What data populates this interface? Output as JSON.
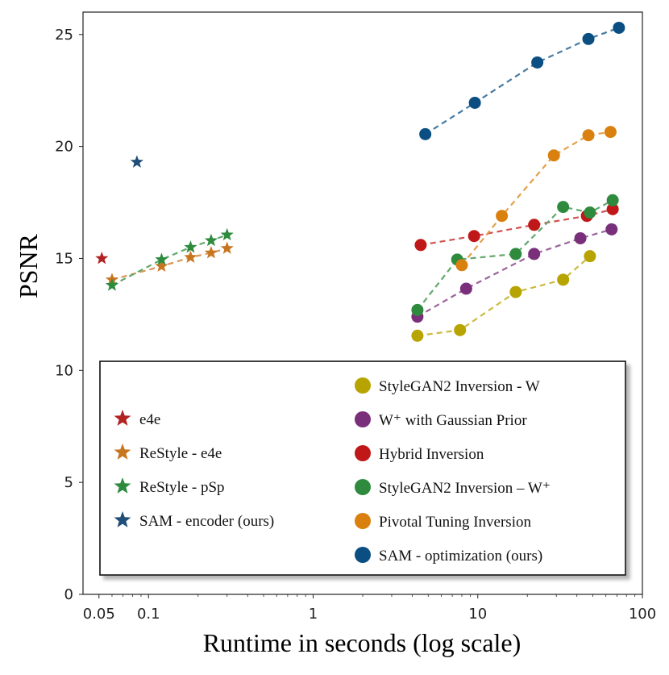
{
  "chart_data": {
    "type": "scatter",
    "title": "",
    "xlabel": "Runtime in seconds (log scale)",
    "ylabel": "PSNR",
    "xscale": "log",
    "xlim": [
      0.04,
      100
    ],
    "ylim": [
      0,
      26
    ],
    "xticks": [
      {
        "value": 0.05,
        "label": "0.05"
      },
      {
        "value": 0.1,
        "label": "0.1"
      },
      {
        "value": 1,
        "label": "1"
      },
      {
        "value": 10,
        "label": "10"
      },
      {
        "value": 100,
        "label": "100"
      }
    ],
    "yticks": [
      {
        "value": 0,
        "label": "0"
      },
      {
        "value": 5,
        "label": "5"
      },
      {
        "value": 10,
        "label": "10"
      },
      {
        "value": 15,
        "label": "15"
      },
      {
        "value": 20,
        "label": "20"
      },
      {
        "value": 25,
        "label": "25"
      }
    ],
    "grid": false,
    "legend_position": "bottom (inside plot)",
    "series": [
      {
        "name": "e4e",
        "marker": "star",
        "color": "#b22222",
        "line": false,
        "legend_column": 0,
        "x": [
          0.052
        ],
        "y": [
          15.0
        ]
      },
      {
        "name": "ReStyle - e4e",
        "marker": "star",
        "color": "#c87520",
        "line": true,
        "legend_column": 0,
        "x": [
          0.06,
          0.12,
          0.18,
          0.24,
          0.3
        ],
        "y": [
          14.05,
          14.65,
          15.05,
          15.25,
          15.45
        ]
      },
      {
        "name": "ReStyle - pSp",
        "marker": "star",
        "color": "#2e8b3e",
        "line": true,
        "legend_column": 0,
        "x": [
          0.06,
          0.12,
          0.18,
          0.24,
          0.3
        ],
        "y": [
          13.8,
          14.95,
          15.5,
          15.8,
          16.05
        ]
      },
      {
        "name": "SAM - encoder (ours)",
        "marker": "star",
        "color": "#1f4e79",
        "line": false,
        "legend_column": 0,
        "x": [
          0.085
        ],
        "y": [
          19.3
        ]
      },
      {
        "name": "StyleGAN2 Inversion - W",
        "marker": "circle",
        "color": "#b8a400",
        "line": true,
        "legend_column": 1,
        "x": [
          4.3,
          7.8,
          17,
          33,
          48
        ],
        "y": [
          11.55,
          11.8,
          13.5,
          14.05,
          15.1
        ]
      },
      {
        "name": "W⁺ with Gaussian Prior",
        "marker": "circle",
        "color": "#7a2f7a",
        "line": true,
        "legend_column": 1,
        "x": [
          4.3,
          8.5,
          22,
          42,
          65
        ],
        "y": [
          12.4,
          13.65,
          15.2,
          15.9,
          16.3
        ]
      },
      {
        "name": "Hybrid Inversion",
        "marker": "circle",
        "color": "#c01818",
        "line": true,
        "legend_column": 1,
        "x": [
          4.5,
          9.5,
          22,
          46,
          66
        ],
        "y": [
          15.6,
          16.0,
          16.5,
          16.9,
          17.2
        ]
      },
      {
        "name": "StyleGAN2 Inversion – W⁺",
        "marker": "circle",
        "color": "#2e8b3e",
        "line": true,
        "legend_column": 1,
        "x": [
          4.3,
          7.5,
          17,
          33,
          48,
          66
        ],
        "y": [
          12.7,
          14.95,
          15.2,
          17.3,
          17.05,
          17.6
        ]
      },
      {
        "name": "Pivotal Tuning Inversion",
        "marker": "circle",
        "color": "#d9800f",
        "line": true,
        "legend_column": 1,
        "x": [
          8,
          14,
          29,
          47,
          64
        ],
        "y": [
          14.7,
          16.9,
          19.6,
          20.5,
          20.65
        ]
      },
      {
        "name": "SAM - optimization (ours)",
        "marker": "circle",
        "color": "#0b4f82",
        "line": true,
        "legend_column": 1,
        "x": [
          4.8,
          9.6,
          23,
          47,
          72
        ],
        "y": [
          20.55,
          21.95,
          23.75,
          24.8,
          25.3
        ]
      }
    ]
  }
}
